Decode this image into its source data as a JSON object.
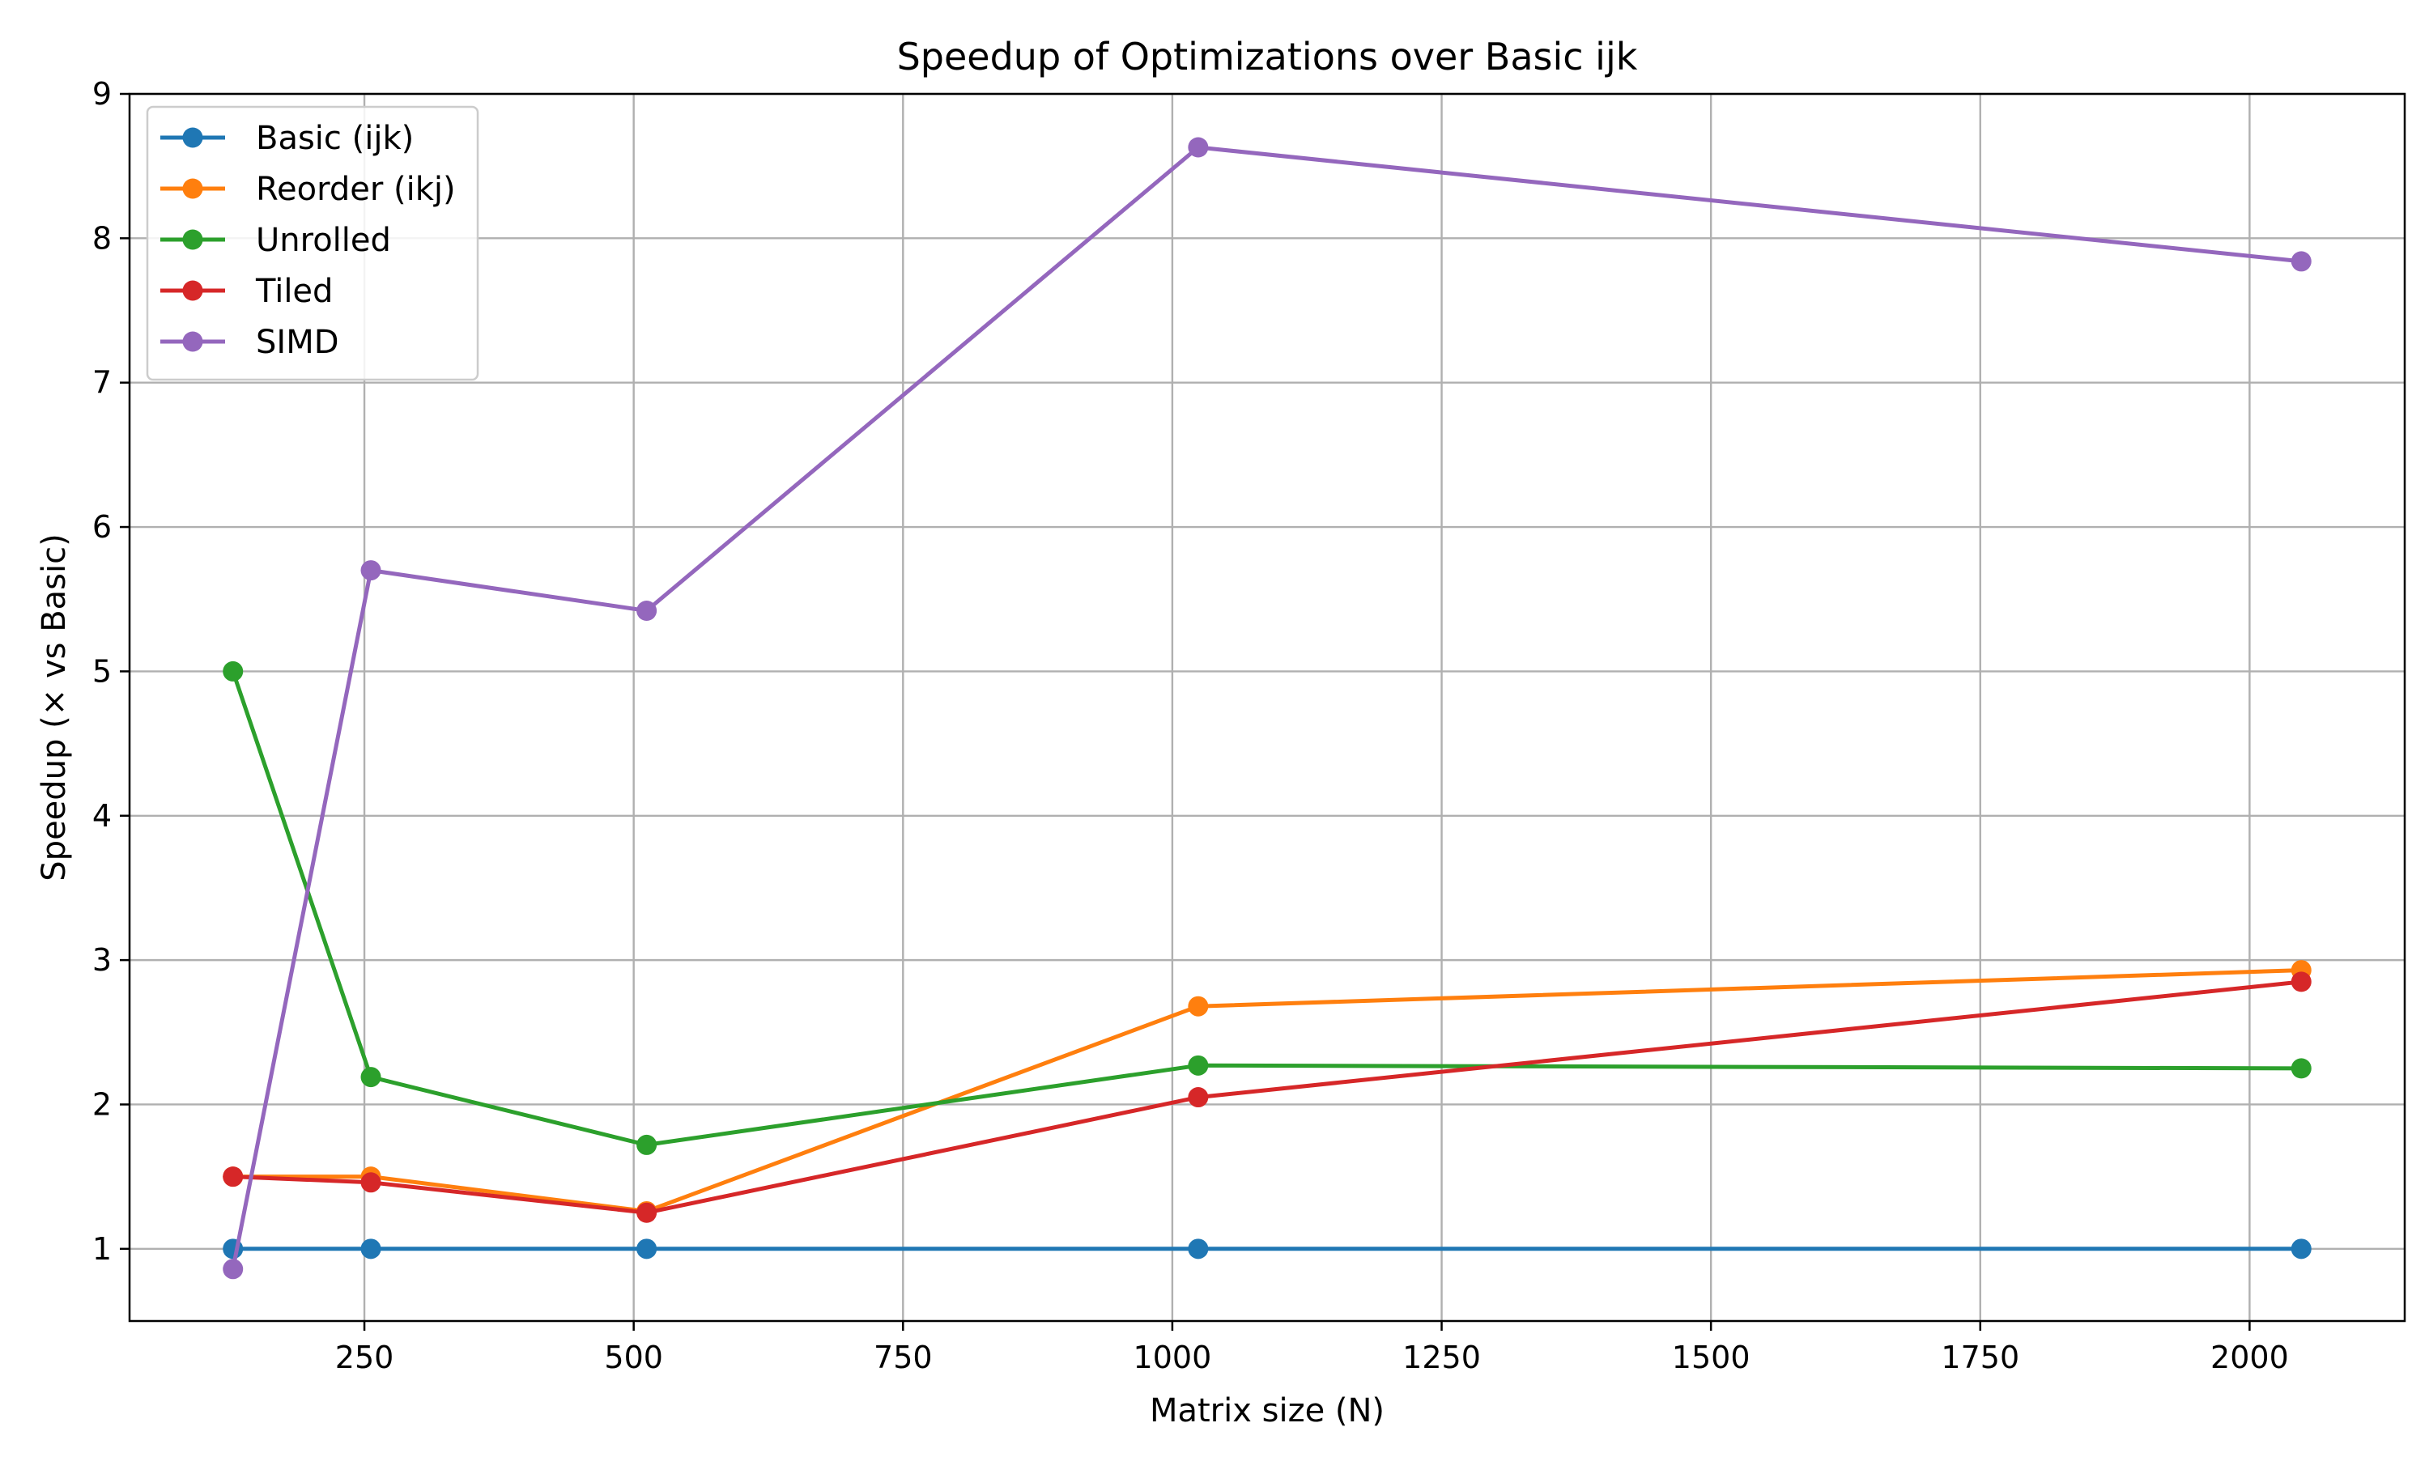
{
  "chart_data": {
    "type": "line",
    "title": "Speedup of Optimizations over Basic ijk",
    "xlabel": "Matrix size (N)",
    "ylabel": "Speedup (× vs Basic)",
    "x": [
      128,
      256,
      512,
      1024,
      2048
    ],
    "xlim": [
      32,
      2144
    ],
    "ylim": [
      0.5,
      9
    ],
    "xticks": [
      250,
      500,
      750,
      1000,
      1250,
      1500,
      1750,
      2000
    ],
    "yticks": [
      1,
      2,
      3,
      4,
      5,
      6,
      7,
      8,
      9
    ],
    "grid": true,
    "legend_position": "top-left",
    "series": [
      {
        "name": "Basic (ijk)",
        "color": "#1f77b4",
        "values": [
          1.0,
          1.0,
          1.0,
          1.0,
          1.0
        ]
      },
      {
        "name": "Reorder (ikj)",
        "color": "#ff7f0e",
        "values": [
          1.5,
          1.5,
          1.26,
          2.68,
          2.93
        ]
      },
      {
        "name": "Unrolled",
        "color": "#2ca02c",
        "values": [
          5.0,
          2.19,
          1.72,
          2.27,
          2.25
        ]
      },
      {
        "name": "Tiled",
        "color": "#d62728",
        "values": [
          1.5,
          1.46,
          1.25,
          2.05,
          2.85
        ]
      },
      {
        "name": "SIMD",
        "color": "#9467bd",
        "values": [
          0.86,
          5.7,
          5.42,
          8.63,
          7.84
        ]
      }
    ]
  }
}
